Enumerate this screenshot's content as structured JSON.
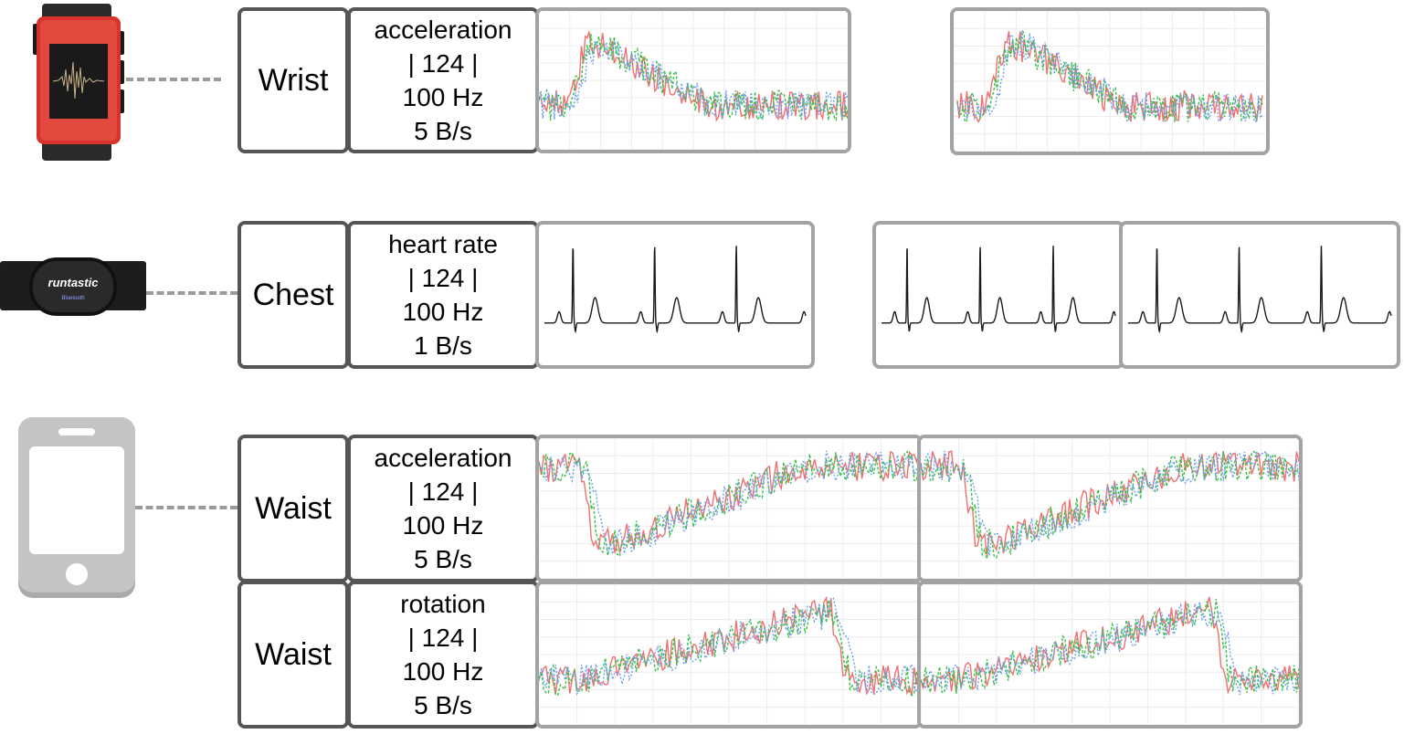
{
  "rows": {
    "wrist": {
      "location": "Wrist",
      "signal": "acceleration",
      "channels": "| 124 |",
      "rate": "100 Hz",
      "throughput": "5 B/s"
    },
    "chest": {
      "location": "Chest",
      "signal": "heart rate",
      "channels": "| 124 |",
      "rate": "100 Hz",
      "throughput": "1 B/s"
    },
    "waist_acc": {
      "location": "Waist",
      "signal": "acceleration",
      "channels": "| 124 |",
      "rate": "100 Hz",
      "throughput": "5 B/s"
    },
    "waist_rot": {
      "location": "Waist",
      "signal": "rotation",
      "channels": "| 124 |",
      "rate": "100 Hz",
      "throughput": "5 B/s"
    }
  },
  "devices": {
    "watch": {
      "icon": "smartwatch-icon",
      "color": "#d7332c"
    },
    "chest_strap": {
      "icon": "heart-rate-strap-icon",
      "brand": "runtastic",
      "color": "#1d1d1d"
    },
    "phone": {
      "icon": "smartphone-icon",
      "color": "#c4c4c4"
    }
  },
  "colors": {
    "series_red": "#f07070",
    "series_green": "#3ac04a",
    "series_blue": "#6c9ff0",
    "ecg": "#1a1a1a",
    "panel_border": "#a3a3a3",
    "box_border": "#555555"
  }
}
